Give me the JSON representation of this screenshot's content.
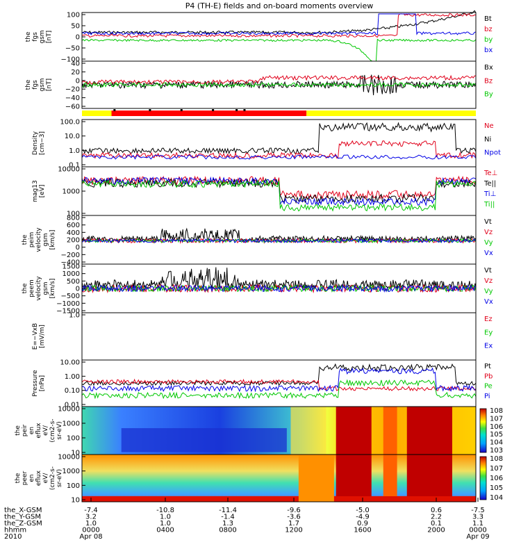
{
  "title": "P4 (TH-E) fields and on-board moments overview",
  "colors": {
    "black": "#000000",
    "red": "#e0001a",
    "green": "#00c800",
    "blue": "#0000e6",
    "yellow": "#ffff00",
    "barRed": "#ff0000"
  },
  "chart_data": [
    {
      "type": "line",
      "id": "fgs",
      "ylabel": [
        "the",
        "fgs",
        "gsm",
        "[nT]"
      ],
      "yticks": [
        "100",
        "50",
        "0",
        "−50",
        "−100"
      ],
      "ylim": [
        -100,
        100
      ],
      "legend": [
        "Bt",
        "bz",
        "by",
        "bx"
      ],
      "legend_colors": [
        "black",
        "red",
        "green",
        "blue"
      ]
    },
    {
      "type": "line",
      "id": "fgs2",
      "ylabel": [
        "the",
        "fgs",
        "gsm",
        "[nT]"
      ],
      "yticks": [
        "40",
        "20",
        "0",
        "−20",
        "−40",
        "−60"
      ],
      "ylim": [
        -70,
        40
      ],
      "legend": [
        "Bx",
        "Bz",
        "By"
      ],
      "legend_colors": [
        "black",
        "red",
        "green"
      ]
    },
    {
      "type": "bar",
      "id": "mode",
      "colors": [
        "yellow",
        "barRed",
        "yellow"
      ],
      "segments": [
        [
          0,
          0.075
        ],
        [
          0.075,
          0.57
        ],
        [
          0.57,
          1.0
        ]
      ]
    },
    {
      "type": "line",
      "id": "density",
      "ylabel": [
        "Density",
        "[cm−3]"
      ],
      "yticks": [
        "100.0",
        "10.0",
        "1.0",
        "0.1"
      ],
      "ylim": [
        0.05,
        100
      ],
      "log": true,
      "legend": [
        "Ne",
        "Ni",
        "Npot"
      ],
      "legend_colors": [
        "red",
        "black",
        "blue"
      ]
    },
    {
      "type": "line",
      "id": "temp",
      "ylabel": [
        "mag13",
        "[eV]"
      ],
      "yticks": [
        "10000",
        "1000",
        "100"
      ],
      "ylim": [
        50,
        12000
      ],
      "log": true,
      "legend": [
        "Te⊥",
        "Te||",
        "Ti⊥",
        "Ti||"
      ],
      "legend_colors": [
        "red",
        "black",
        "blue",
        "green"
      ]
    },
    {
      "type": "line",
      "id": "peim",
      "ylabel": [
        "the",
        "peim",
        "velocity",
        "gsm",
        "[km/s]"
      ],
      "yticks": [
        "800",
        "600",
        "400",
        "200",
        "0",
        "−200",
        "−400"
      ],
      "ylim": [
        -450,
        850
      ],
      "legend": [
        "Vt",
        "Vz",
        "Vy",
        "Vx"
      ],
      "legend_colors": [
        "black",
        "red",
        "green",
        "blue"
      ]
    },
    {
      "type": "line",
      "id": "peem",
      "ylabel": [
        "the",
        "peem",
        "velocity",
        "gsm",
        "[km/s]"
      ],
      "yticks": [
        "1500",
        "1000",
        "500",
        "0",
        "−500",
        "−1000",
        "−1500"
      ],
      "ylim": [
        -1550,
        1550
      ],
      "legend": [
        "Vt",
        "Vz",
        "Vy",
        "Vx"
      ],
      "legend_colors": [
        "black",
        "red",
        "green",
        "blue"
      ]
    },
    {
      "type": "line",
      "id": "efield",
      "ylabel": [
        "E=−VxB",
        "[mV/m]"
      ],
      "yticks": [
        "1.0"
      ],
      "ylim": [
        0,
        1
      ],
      "legend": [
        "Ez",
        "Ey",
        "Ex"
      ],
      "legend_colors": [
        "red",
        "green",
        "blue"
      ]
    },
    {
      "type": "line",
      "id": "pressure",
      "ylabel": [
        "Pressure",
        "[nPa]"
      ],
      "yticks": [
        "10.00",
        "1.00",
        "0.10",
        "0.01"
      ],
      "ylim": [
        0.005,
        15
      ],
      "log": true,
      "legend": [
        "Pt",
        "Pb",
        "Pe",
        "Pi"
      ],
      "legend_colors": [
        "black",
        "red",
        "green",
        "blue"
      ]
    },
    {
      "type": "heatmap",
      "id": "peir",
      "ylabel": [
        "the",
        "peir",
        "en",
        "eflux",
        "eV/",
        "(cm2-s-",
        "sr-eV)"
      ],
      "yticks": [
        "10000",
        "1000",
        "100",
        "10"
      ],
      "cbar_ticks": [
        "10^8",
        "10^7",
        "10^6",
        "10^5",
        "10^4",
        "10^3"
      ]
    },
    {
      "type": "heatmap",
      "id": "peer",
      "ylabel": [
        "the",
        "peer",
        "en",
        "eflux",
        "eV/",
        "(cm2-s-",
        "sr-eV)"
      ],
      "yticks": [
        "10000",
        "1000",
        "100",
        "10"
      ],
      "cbar_ticks": [
        "10^8",
        "10^7",
        "10^6",
        "10^5",
        "10^4"
      ]
    }
  ],
  "footer": {
    "rows": [
      {
        "label": "the_X-GSM",
        "values": [
          "-7.4",
          "-10.8",
          "-11.4",
          "-9.6",
          "-5.0",
          "0.6",
          "-7.5"
        ]
      },
      {
        "label": "the_Y-GSM",
        "values": [
          "3.2",
          "1.0",
          "-1.4",
          "-3.6",
          "-4.9",
          "2.2",
          "3.3"
        ]
      },
      {
        "label": "the_Z-GSM",
        "values": [
          "1.0",
          "1.0",
          "1.3",
          "1.7",
          "0.9",
          "0.1",
          "1.1"
        ]
      },
      {
        "label": "hhmm",
        "values": [
          "0000",
          "0400",
          "0800",
          "1200",
          "1600",
          "2000",
          "0000"
        ]
      },
      {
        "label": "2010",
        "values": [
          "Apr 08",
          "",
          "",
          "",
          "",
          "",
          "Apr 09"
        ]
      }
    ]
  }
}
